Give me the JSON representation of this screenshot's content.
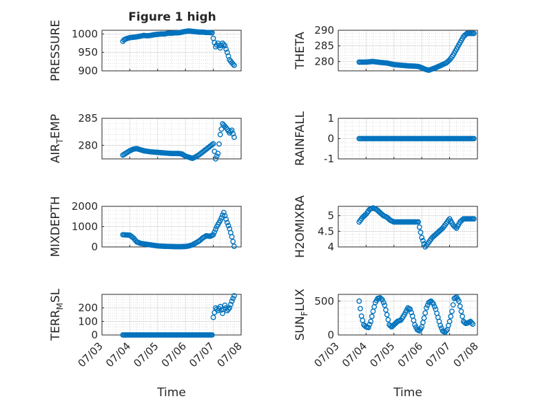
{
  "figure": {
    "title": "Figure 1 high",
    "marker_color": "#0072BD"
  },
  "chart_data": [
    {
      "type": "scatter",
      "title": "Figure 1 high",
      "ylabel": "PRESSURE",
      "xlabel": "",
      "ylim": [
        900,
        1010
      ],
      "yticks": [
        900,
        950,
        1000
      ],
      "xlim": [
        "07/03",
        "07/08"
      ],
      "xtick_labels": [],
      "grid": true,
      "series": [
        {
          "x": [
            "07/03 18:00",
            "07/03 19:00",
            "07/03 21:00",
            "07/04 00:00",
            "07/04 03:00",
            "07/04 06:00",
            "07/04 09:00",
            "07/04 12:00",
            "07/04 15:00",
            "07/04 18:00",
            "07/04 21:00",
            "07/05 00:00",
            "07/05 03:00",
            "07/05 06:00",
            "07/05 09:00",
            "07/05 12:00",
            "07/05 15:00",
            "07/05 18:00",
            "07/05 21:00",
            "07/06 00:00",
            "07/06 03:00",
            "07/06 06:00",
            "07/06 09:00",
            "07/06 12:00",
            "07/06 15:00",
            "07/06 18:00",
            "07/06 21:00",
            "07/06 23:00",
            "07/07 00:00",
            "07/07 02:00",
            "07/07 04:00",
            "07/07 06:00",
            "07/07 08:00",
            "07/07 10:00",
            "07/07 12:00",
            "07/07 14:00",
            "07/07 16:00",
            "07/07 18:00"
          ],
          "y": [
            980,
            984,
            987,
            990,
            991,
            992,
            994,
            996,
            995,
            996,
            998,
            999,
            1000,
            1000,
            1002,
            1002,
            1003,
            1003,
            1005,
            1007,
            1008,
            1007,
            1006,
            1005,
            1005,
            1004,
            1004,
            1003,
            988,
            965,
            975,
            962,
            975,
            968,
            950,
            930,
            922,
            915
          ]
        }
      ]
    },
    {
      "type": "scatter",
      "title": "",
      "ylabel": "THETA",
      "xlabel": "",
      "ylim": [
        277,
        290
      ],
      "yticks": [
        280,
        285,
        290
      ],
      "xlim": [
        "07/03",
        "07/08"
      ],
      "xtick_labels": [],
      "grid": true,
      "series": [
        {
          "x": [
            "07/03 18:00",
            "07/04 00:00",
            "07/04 06:00",
            "07/04 12:00",
            "07/04 18:00",
            "07/05 00:00",
            "07/05 06:00",
            "07/05 12:00",
            "07/05 18:00",
            "07/05 21:00",
            "07/06 00:00",
            "07/06 03:00",
            "07/06 06:00",
            "07/06 09:00",
            "07/06 12:00",
            "07/06 15:00",
            "07/06 18:00",
            "07/06 21:00",
            "07/07 00:00",
            "07/07 03:00",
            "07/07 06:00",
            "07/07 09:00",
            "07/07 12:00",
            "07/07 15:00",
            "07/07 18:00",
            "07/07 21:00"
          ],
          "y": [
            279.8,
            279.8,
            280,
            279.7,
            279.5,
            279,
            278.8,
            278.6,
            278.5,
            278.4,
            278,
            277.5,
            277.2,
            277.6,
            278,
            278.5,
            279,
            279.5,
            280.5,
            282,
            284,
            286,
            288,
            289,
            289,
            289
          ]
        }
      ]
    },
    {
      "type": "scatter",
      "title": "",
      "ylabel": "AIR_TEMP",
      "xlabel": "",
      "ylim": [
        277.5,
        285
      ],
      "yticks": [
        280,
        285
      ],
      "xlim": [
        "07/03",
        "07/08"
      ],
      "xtick_labels": [],
      "grid": true,
      "series": [
        {
          "x": [
            "07/03 18:00",
            "07/03 21:00",
            "07/04 00:00",
            "07/04 03:00",
            "07/04 06:00",
            "07/04 09:00",
            "07/04 12:00",
            "07/04 18:00",
            "07/05 00:00",
            "07/05 06:00",
            "07/05 12:00",
            "07/05 18:00",
            "07/05 21:00",
            "07/06 00:00",
            "07/06 03:00",
            "07/06 06:00",
            "07/06 09:00",
            "07/06 12:00",
            "07/06 15:00",
            "07/06 18:00",
            "07/06 21:00",
            "07/07 00:00",
            "07/07 02:00",
            "07/07 04:00",
            "07/07 06:00",
            "07/07 08:00",
            "07/07 10:00",
            "07/07 12:00",
            "07/07 14:00",
            "07/07 16:00",
            "07/07 18:00"
          ],
          "y": [
            278.2,
            278.6,
            279,
            279.3,
            279.4,
            279.2,
            279,
            278.8,
            278.7,
            278.6,
            278.5,
            278.5,
            278.4,
            278,
            277.8,
            277.6,
            277.9,
            278.3,
            278.8,
            279.3,
            279.8,
            280.3,
            277.5,
            278.5,
            282,
            284,
            283.5,
            283,
            282.3,
            282.8,
            281.5
          ]
        }
      ]
    },
    {
      "type": "scatter",
      "title": "",
      "ylabel": "RAINFALL",
      "xlabel": "",
      "ylim": [
        -1,
        1
      ],
      "yticks": [
        -1,
        0,
        1
      ],
      "xlim": [
        "07/03",
        "07/08"
      ],
      "xtick_labels": [],
      "grid": true,
      "series": [
        {
          "x": [
            "07/03 18:00",
            "07/07 21:00"
          ],
          "y": [
            0,
            0
          ]
        }
      ]
    },
    {
      "type": "scatter",
      "title": "",
      "ylabel": "MIXDEPTH",
      "xlabel": "",
      "ylim": [
        0,
        2000
      ],
      "yticks": [
        0,
        1000,
        2000
      ],
      "xlim": [
        "07/03",
        "07/08"
      ],
      "xtick_labels": [],
      "grid": true,
      "series": [
        {
          "x": [
            "07/03 18:00",
            "07/04 00:00",
            "07/04 03:00",
            "07/04 06:00",
            "07/04 09:00",
            "07/04 12:00",
            "07/04 18:00",
            "07/05 00:00",
            "07/05 06:00",
            "07/05 12:00",
            "07/05 18:00",
            "07/06 00:00",
            "07/06 03:00",
            "07/06 06:00",
            "07/06 09:00",
            "07/06 12:00",
            "07/06 15:00",
            "07/06 18:00",
            "07/06 21:00",
            "07/07 00:00",
            "07/07 03:00",
            "07/07 06:00",
            "07/07 09:00",
            "07/07 12:00",
            "07/07 14:00",
            "07/07 16:00",
            "07/07 18:00"
          ],
          "y": [
            600,
            580,
            450,
            250,
            180,
            150,
            100,
            50,
            30,
            20,
            10,
            20,
            50,
            100,
            200,
            300,
            450,
            550,
            520,
            600,
            1000,
            1300,
            1700,
            1200,
            900,
            500,
            30
          ]
        }
      ]
    },
    {
      "type": "scatter",
      "title": "",
      "ylabel": "H2OMIXRA",
      "xlabel": "",
      "ylim": [
        4,
        5.3
      ],
      "yticks": [
        4,
        4.5,
        5
      ],
      "xlim": [
        "07/03",
        "07/08"
      ],
      "xtick_labels": [],
      "grid": true,
      "series": [
        {
          "x": [
            "07/03 18:00",
            "07/03 21:00",
            "07/04 00:00",
            "07/04 03:00",
            "07/04 06:00",
            "07/04 09:00",
            "07/04 12:00",
            "07/04 15:00",
            "07/04 18:00",
            "07/04 21:00",
            "07/05 00:00",
            "07/05 03:00",
            "07/05 06:00",
            "07/05 12:00",
            "07/05 18:00",
            "07/05 21:00",
            "07/06 00:00",
            "07/06 03:00",
            "07/06 06:00",
            "07/06 09:00",
            "07/06 12:00",
            "07/06 15:00",
            "07/06 18:00",
            "07/06 21:00",
            "07/07 00:00",
            "07/07 03:00",
            "07/07 06:00",
            "07/07 09:00",
            "07/07 12:00",
            "07/07 15:00",
            "07/07 18:00",
            "07/07 21:00"
          ],
          "y": [
            4.8,
            4.95,
            5.05,
            5.2,
            5.25,
            5.2,
            5.1,
            5,
            4.95,
            4.85,
            4.8,
            4.8,
            4.8,
            4.8,
            4.8,
            4.8,
            4.3,
            4,
            4.15,
            4.3,
            4.4,
            4.5,
            4.6,
            4.75,
            4.9,
            4.7,
            4.6,
            4.8,
            4.9,
            4.9,
            4.9,
            4.9
          ]
        }
      ]
    },
    {
      "type": "scatter",
      "title": "",
      "ylabel": "TERR_MSL",
      "xlabel": "Time",
      "ylim": [
        0,
        300
      ],
      "yticks": [
        0,
        100,
        200
      ],
      "xlim": [
        "07/03",
        "07/08"
      ],
      "xtick_labels": [
        "07/03",
        "07/04",
        "07/05",
        "07/06",
        "07/07",
        "07/08"
      ],
      "grid": true,
      "series": [
        {
          "x": [
            "07/03 18:00",
            "07/04 00:00",
            "07/04 12:00",
            "07/05 00:00",
            "07/05 12:00",
            "07/06 00:00",
            "07/06 12:00",
            "07/06 23:00",
            "07/07 00:00",
            "07/07 02:00",
            "07/07 04:00",
            "07/07 06:00",
            "07/07 08:00",
            "07/07 10:00",
            "07/07 12:00",
            "07/07 14:00",
            "07/07 16:00",
            "07/07 18:00"
          ],
          "y": [
            0,
            0,
            0,
            0,
            0,
            0,
            0,
            0,
            130,
            200,
            180,
            210,
            160,
            220,
            180,
            200,
            250,
            290
          ]
        }
      ]
    },
    {
      "type": "scatter",
      "title": "",
      "ylabel": "SUN_FLUX",
      "xlabel": "Time",
      "ylim": [
        0,
        600
      ],
      "yticks": [
        0,
        500
      ],
      "xlim": [
        "07/03",
        "07/08"
      ],
      "xtick_labels": [
        "07/03",
        "07/04",
        "07/05",
        "07/06",
        "07/07",
        "07/08"
      ],
      "grid": true,
      "series": [
        {
          "x": [
            "07/03 18:00",
            "07/03 20:00",
            "07/03 22:00",
            "07/04 00:00",
            "07/04 02:00",
            "07/04 04:00",
            "07/04 06:00",
            "07/04 08:00",
            "07/04 10:00",
            "07/04 12:00",
            "07/04 14:00",
            "07/04 16:00",
            "07/04 18:00",
            "07/04 20:00",
            "07/04 22:00",
            "07/05 00:00",
            "07/05 03:00",
            "07/05 06:00",
            "07/05 09:00",
            "07/05 12:00",
            "07/05 14:00",
            "07/05 16:00",
            "07/05 18:00",
            "07/05 20:00",
            "07/05 22:00",
            "07/06 00:00",
            "07/06 02:00",
            "07/06 04:00",
            "07/06 06:00",
            "07/06 08:00",
            "07/06 10:00",
            "07/06 12:00",
            "07/06 14:00",
            "07/06 16:00",
            "07/06 18:00",
            "07/06 20:00",
            "07/06 22:00",
            "07/07 00:00",
            "07/07 02:00",
            "07/07 04:00",
            "07/07 06:00",
            "07/07 08:00",
            "07/07 10:00",
            "07/07 12:00",
            "07/07 14:00",
            "07/07 16:00",
            "07/07 18:00",
            "07/07 20:00"
          ],
          "y": [
            500,
            280,
            150,
            120,
            110,
            200,
            350,
            480,
            540,
            550,
            520,
            440,
            300,
            150,
            120,
            150,
            200,
            220,
            300,
            400,
            380,
            280,
            150,
            80,
            60,
            120,
            250,
            400,
            480,
            500,
            460,
            380,
            260,
            140,
            60,
            40,
            80,
            200,
            350,
            540,
            560,
            500,
            350,
            200,
            170,
            180,
            200,
            160
          ]
        }
      ]
    }
  ]
}
